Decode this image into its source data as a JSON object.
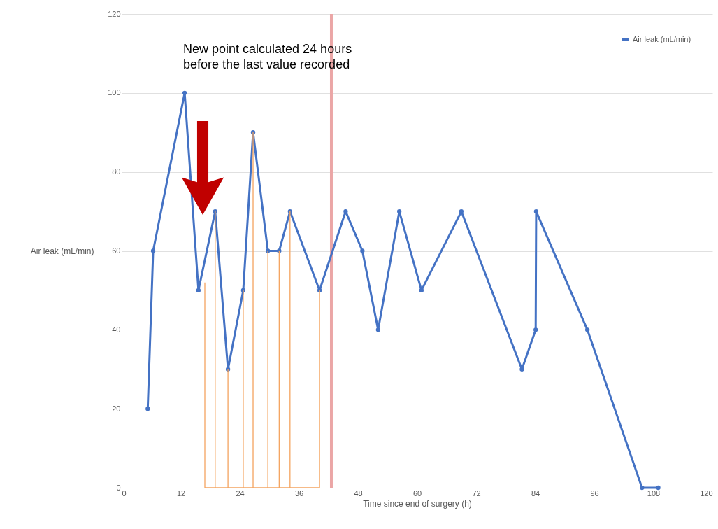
{
  "chart_data": {
    "type": "line",
    "xlabel": "Time since end of surgery (h)",
    "ylabel": "Air leak (mL/min)",
    "annotations": [
      "New point calculated 24 hours before the last value recorded"
    ],
    "series": [
      {
        "name": "Air leak (mL/min)",
        "color": "#4472c4",
        "x": [
          5.3,
          6.4,
          12.8,
          15.6,
          19.0,
          21.6,
          24.7,
          26.7,
          29.7,
          32.0,
          34.2,
          40.2,
          45.5,
          48.9,
          52.1,
          56.4,
          60.9,
          69.0,
          81.3,
          84.1,
          84.2,
          94.6,
          105.7,
          109.0
        ],
        "values": [
          20,
          60,
          100,
          50,
          70,
          30,
          50,
          90,
          60,
          60,
          70,
          50,
          70,
          60,
          40,
          70,
          50,
          70,
          30,
          40,
          70,
          40,
          0,
          0
        ]
      },
      {
        "type": "line",
        "color": "#f4a460",
        "marker": "none",
        "x": [
          16.9,
          16.9,
          19.0,
          19.0,
          19.0,
          21.6,
          21.6,
          21.6,
          24.7,
          24.7,
          24.7,
          26.7,
          26.7,
          26.7,
          29.7,
          29.7,
          29.7,
          32.0,
          32.0,
          32.0,
          34.2,
          34.2,
          34.2,
          40.2,
          40.2
        ],
        "values": [
          52,
          0,
          0,
          70,
          0,
          0,
          30,
          0,
          0,
          50,
          0,
          0,
          90,
          0,
          0,
          60,
          0,
          0,
          60,
          0,
          0,
          70,
          0,
          0,
          50
        ]
      }
    ],
    "xlim": [
      0,
      120
    ],
    "xticks": [
      0,
      12,
      24,
      36,
      48,
      60,
      72,
      84,
      96,
      108,
      120
    ],
    "ylim": [
      0,
      120
    ],
    "yticks": [
      0,
      20,
      40,
      60,
      80,
      100,
      120
    ],
    "ref_lines": [
      {
        "axis": "x",
        "value": 42.6,
        "color": "#eba6a6"
      }
    ],
    "grid": "y",
    "legend": "top right",
    "marker": "circle",
    "line_style": "solid"
  }
}
